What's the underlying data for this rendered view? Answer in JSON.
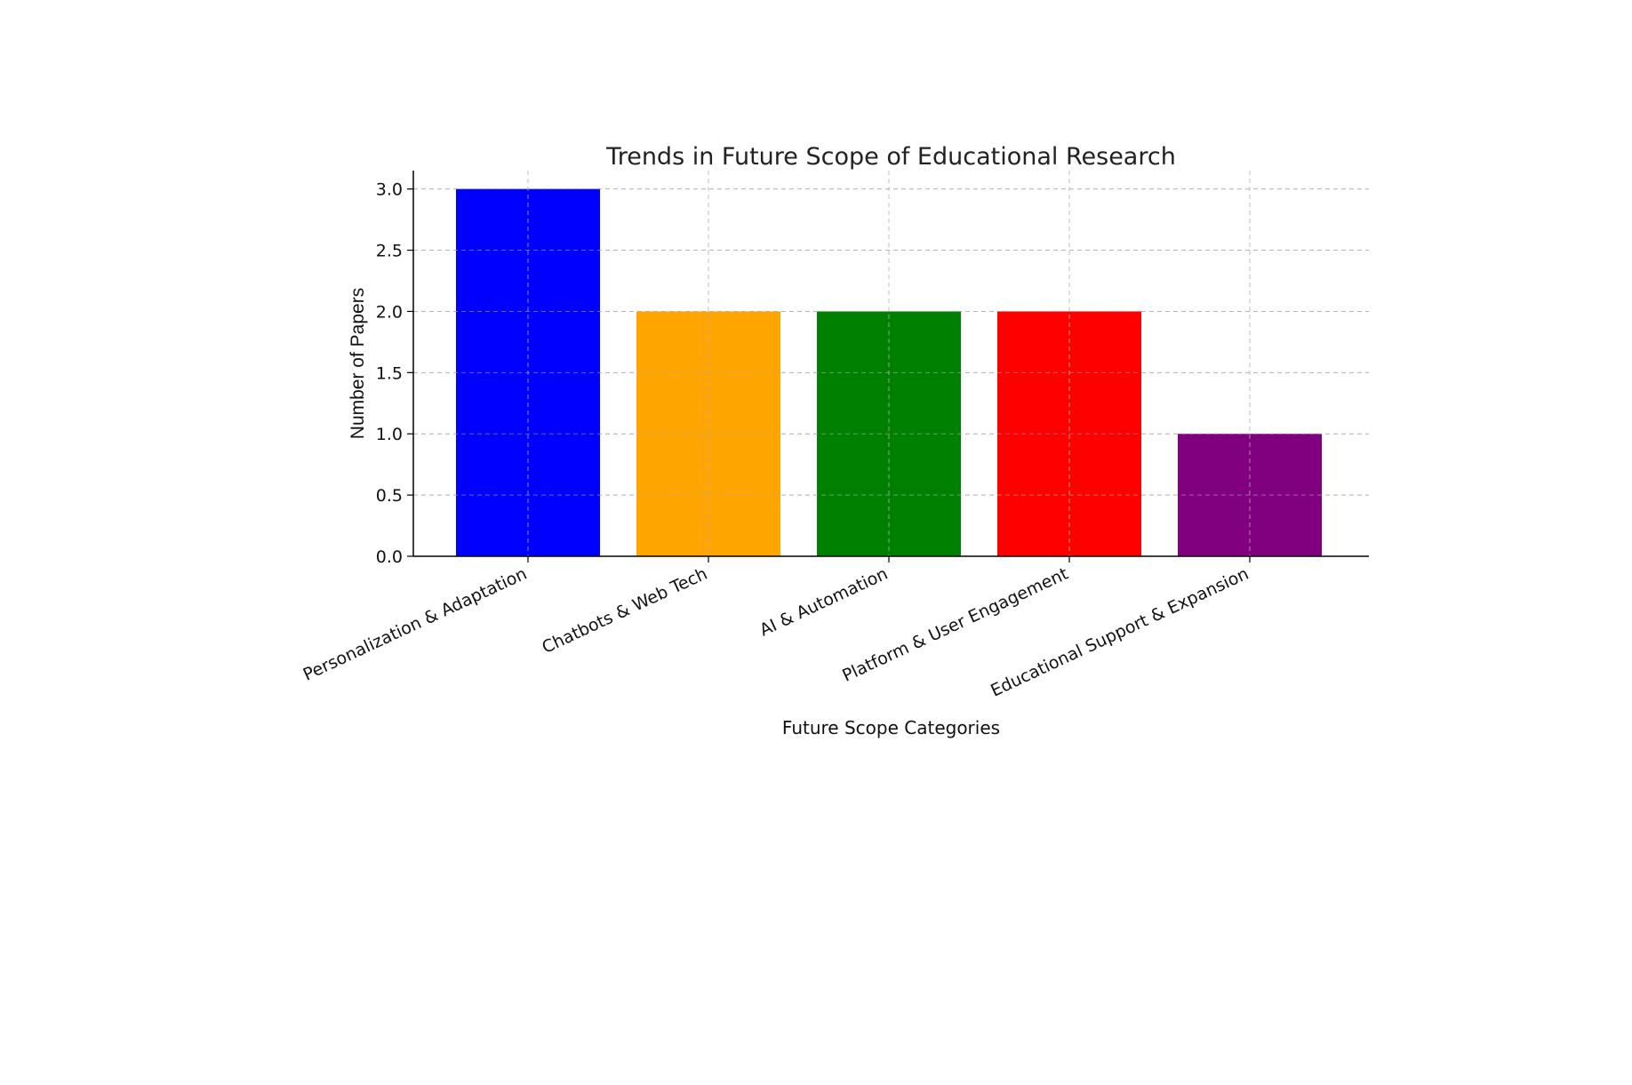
{
  "chart_data": {
    "type": "bar",
    "title": "Trends in Future Scope of Educational Research",
    "xlabel": "Future Scope Categories",
    "ylabel": "Number of Papers",
    "categories": [
      "Personalization & Adaptation",
      "Chatbots & Web Tech",
      "AI & Automation",
      "Platform & User Engagement",
      "Educational Support & Expansion"
    ],
    "values": [
      3,
      2,
      2,
      2,
      1
    ],
    "colors": [
      "#0000ff",
      "#ffa500",
      "#008000",
      "#ff0000",
      "#800080"
    ],
    "ylim": [
      0,
      3.15
    ],
    "yticks": [
      "0.0",
      "0.5",
      "1.0",
      "1.5",
      "2.0",
      "2.5",
      "3.0"
    ],
    "grid": true,
    "grid_style": "dashed"
  }
}
